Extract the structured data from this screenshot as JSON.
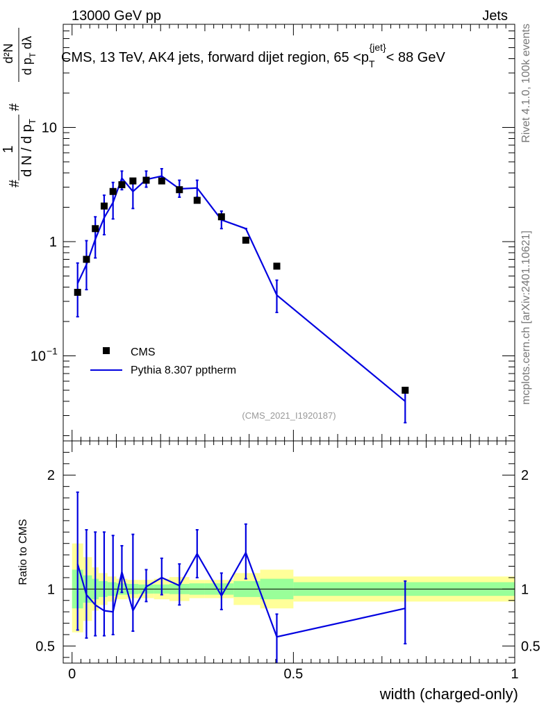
{
  "header": {
    "left": "13000 GeV pp",
    "right": "Jets",
    "title_main": "CMS, 13 TeV, AK4 jets, forward dijet region, 65 <p",
    "title_sub": "T",
    "title_sup": "{jet}",
    "title_end": "< 88 GeV",
    "side_top": "Rivet 4.1.0,  100k events",
    "side_bottom": "mcplots.cern.ch [arXiv:2401.10621]",
    "analysis_id": "(CMS_2021_I1920187)"
  },
  "colors": {
    "mc": "#0000e0",
    "data": "#000000",
    "band_outer": "#ffff99",
    "band_inner": "#99ff99",
    "analysis_label": "#999999",
    "side_label": "#777777"
  },
  "legend": {
    "data_label": "CMS",
    "mc_label": "Pythia 8.307 pptherm"
  },
  "chart_data": [
    {
      "type": "scatter",
      "panel": "main",
      "title": "CMS, 13 TeV, AK4 jets, forward dijet region, 65 < pT{jet} < 88 GeV",
      "xlabel": "width (charged-only)",
      "ylabel_parts": {
        "hash": "#",
        "one": "1",
        "den": "d N / d p",
        "den_sub": "T",
        "num2": "d²N",
        "den2": "d p",
        "den2_sub": "T",
        "den2_tail": " dλ"
      },
      "yscale": "log",
      "ylim": [
        0.018,
        80
      ],
      "xlim": [
        -0.02,
        1.0
      ],
      "yticks": [
        {
          "value": 10,
          "label": "10"
        },
        {
          "value": 1,
          "label": "1"
        },
        {
          "value": 0.1,
          "label": "10",
          "sup": "−1"
        }
      ],
      "series": [
        {
          "name": "CMS",
          "kind": "points",
          "x": [
            0.0125,
            0.0325,
            0.0525,
            0.0725,
            0.0925,
            0.1125,
            0.1375,
            0.1675,
            0.2025,
            0.2425,
            0.2825,
            0.3375,
            0.3925,
            0.4625,
            0.7525
          ],
          "y": [
            0.36,
            0.7,
            1.3,
            2.05,
            2.75,
            3.15,
            3.4,
            3.45,
            3.4,
            2.85,
            2.3,
            1.65,
            1.03,
            0.61,
            0.05
          ]
        },
        {
          "name": "Pythia 8.307 pptherm",
          "kind": "line",
          "x": [
            0.0125,
            0.0325,
            0.0525,
            0.0725,
            0.0925,
            0.1125,
            0.1375,
            0.1675,
            0.2025,
            0.2425,
            0.2825,
            0.3375,
            0.3925,
            0.4625,
            0.7525
          ],
          "y": [
            0.43,
            0.63,
            1.05,
            1.62,
            2.2,
            3.6,
            2.75,
            3.5,
            3.75,
            2.9,
            2.95,
            1.55,
            1.3,
            0.34,
            0.04
          ],
          "err_up": [
            0.65,
            1.02,
            1.65,
            2.55,
            3.3,
            4.15,
            3.55,
            4.15,
            4.35,
            3.45,
            3.45,
            1.85,
            1.3,
            0.46,
            0.052
          ],
          "err_down": [
            0.22,
            0.38,
            0.72,
            1.15,
            1.58,
            2.85,
            1.95,
            3.0,
            3.25,
            2.45,
            2.45,
            1.3,
            1.3,
            0.24,
            0.026
          ]
        }
      ]
    },
    {
      "type": "line",
      "panel": "ratio",
      "ylabel": "Ratio to CMS",
      "ylim": [
        0.35,
        2.3
      ],
      "xlim": [
        -0.02,
        1.0
      ],
      "yticks": [
        {
          "value": 0.5,
          "label": "0.5"
        },
        {
          "value": 1,
          "label": "1"
        },
        {
          "value": 2,
          "label": "2"
        }
      ],
      "xticks": [
        {
          "value": 0,
          "label": "0"
        },
        {
          "value": 0.5,
          "label": "0.5"
        },
        {
          "value": 1,
          "label": "1"
        }
      ],
      "band_bins": [
        {
          "x0": 0.0,
          "x1": 0.025,
          "inner": [
            0.83,
            1.17
          ],
          "outer": [
            0.62,
            1.4
          ]
        },
        {
          "x0": 0.025,
          "x1": 0.045,
          "inner": [
            0.88,
            1.12
          ],
          "outer": [
            0.72,
            1.28
          ]
        },
        {
          "x0": 0.045,
          "x1": 0.06,
          "inner": [
            0.91,
            1.09
          ],
          "outer": [
            0.81,
            1.19
          ]
        },
        {
          "x0": 0.06,
          "x1": 0.08,
          "inner": [
            0.93,
            1.07
          ],
          "outer": [
            0.86,
            1.14
          ]
        },
        {
          "x0": 0.08,
          "x1": 0.1,
          "inner": [
            0.94,
            1.06
          ],
          "outer": [
            0.89,
            1.11
          ]
        },
        {
          "x0": 0.1,
          "x1": 0.125,
          "inner": [
            0.95,
            1.05
          ],
          "outer": [
            0.91,
            1.09
          ]
        },
        {
          "x0": 0.125,
          "x1": 0.15,
          "inner": [
            0.955,
            1.045
          ],
          "outer": [
            0.92,
            1.08
          ]
        },
        {
          "x0": 0.15,
          "x1": 0.185,
          "inner": [
            0.96,
            1.04
          ],
          "outer": [
            0.92,
            1.08
          ]
        },
        {
          "x0": 0.185,
          "x1": 0.22,
          "inner": [
            0.96,
            1.04
          ],
          "outer": [
            0.91,
            1.09
          ]
        },
        {
          "x0": 0.22,
          "x1": 0.265,
          "inner": [
            0.955,
            1.045
          ],
          "outer": [
            0.895,
            1.105
          ]
        },
        {
          "x0": 0.265,
          "x1": 0.3,
          "inner": [
            0.95,
            1.05
          ],
          "outer": [
            0.92,
            1.08
          ]
        },
        {
          "x0": 0.3,
          "x1": 0.365,
          "inner": [
            0.95,
            1.05
          ],
          "outer": [
            0.92,
            1.08
          ]
        },
        {
          "x0": 0.365,
          "x1": 0.425,
          "inner": [
            0.93,
            1.07
          ],
          "outer": [
            0.86,
            1.14
          ]
        },
        {
          "x0": 0.425,
          "x1": 0.5,
          "inner": [
            0.91,
            1.09
          ],
          "outer": [
            0.83,
            1.17
          ]
        },
        {
          "x0": 0.5,
          "x1": 1.0,
          "inner": [
            0.94,
            1.06
          ],
          "outer": [
            0.89,
            1.11
          ]
        }
      ],
      "series": [
        {
          "name": "Pythia 8.307 pptherm / CMS",
          "x": [
            0.0125,
            0.0325,
            0.0525,
            0.0725,
            0.0925,
            0.1125,
            0.1375,
            0.1675,
            0.2025,
            0.2425,
            0.2825,
            0.3375,
            0.3925,
            0.4625,
            0.7525
          ],
          "y": [
            1.22,
            0.95,
            0.86,
            0.81,
            0.8,
            1.15,
            0.81,
            1.02,
            1.1,
            1.03,
            1.31,
            0.94,
            1.32,
            0.58,
            0.83
          ],
          "err_up": [
            1.85,
            1.52,
            1.5,
            1.5,
            1.47,
            1.38,
            1.48,
            1.17,
            1.27,
            1.22,
            1.52,
            1.14,
            1.57,
            0.78,
            1.07
          ],
          "err_down": [
            0.64,
            0.57,
            0.59,
            0.59,
            0.6,
            0.97,
            0.63,
            0.89,
            0.95,
            0.86,
            1.1,
            0.82,
            1.09,
            0.33,
            0.52
          ]
        }
      ]
    }
  ]
}
